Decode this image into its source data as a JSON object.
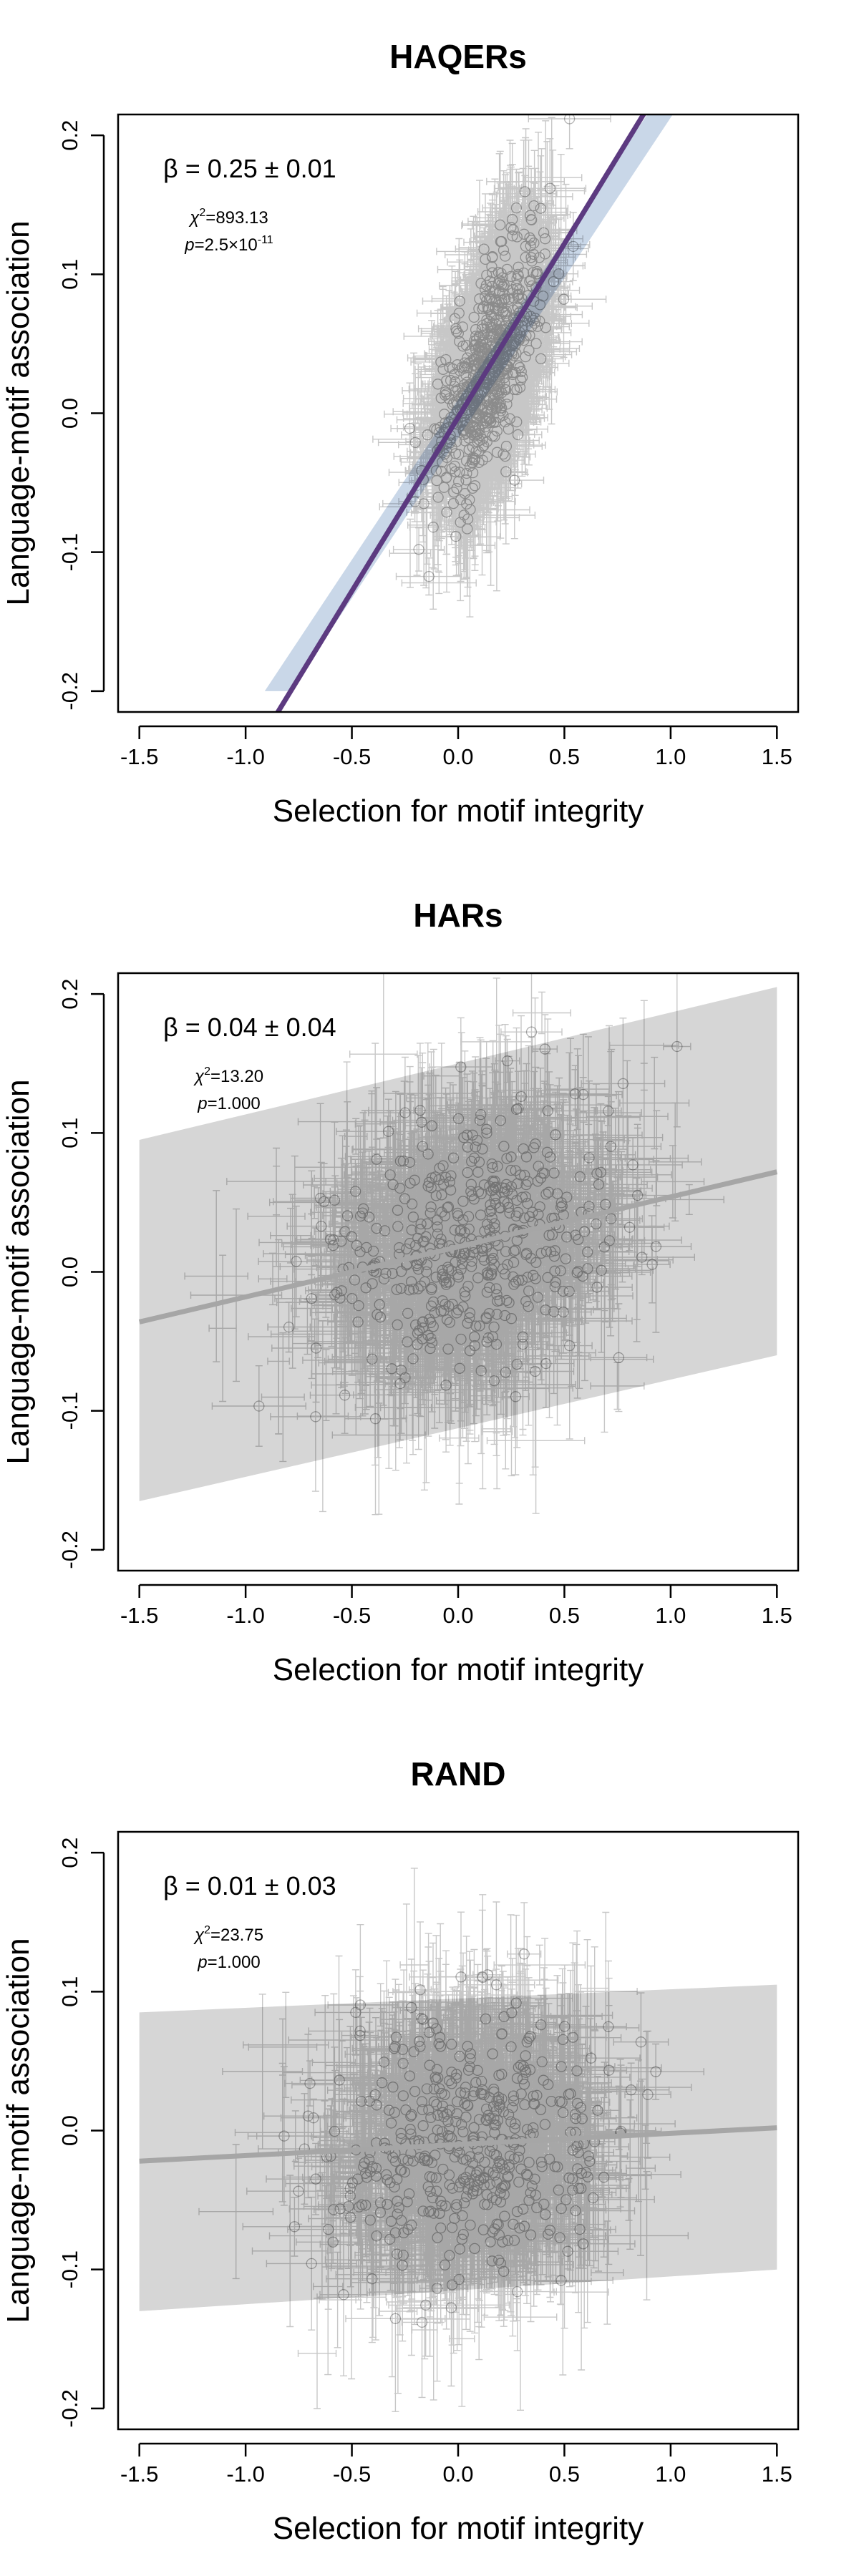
{
  "chart_data": [
    {
      "type": "scatter",
      "title": "HAQERs",
      "xlabel": "Selection for motif integrity",
      "ylabel": "Language-motif association",
      "xlim": [
        -1.6,
        1.6
      ],
      "ylim": [
        -0.215,
        0.215
      ],
      "xticks": [
        "-1.5",
        "-1.0",
        "-0.5",
        "0.0",
        "0.5",
        "1.0",
        "1.5"
      ],
      "yticks": [
        "-0.2",
        "-0.1",
        "0.0",
        "0.1",
        "0.2"
      ],
      "beta_label": "β = 0.25 ± 0.01",
      "chi2_label": "χ",
      "chi2_value": "=893.13",
      "p_label": "p",
      "p_value": "=2.5×10",
      "p_exponent": "-11",
      "fit": {
        "slope": 0.25,
        "intercept": -0.003
      },
      "band": {
        "left": [
          -0.85,
          -0.2
        ],
        "right": [
          0.95,
          0.215
        ]
      },
      "colors": {
        "fit_line": "#5c3a80",
        "band": "#c9d7e8",
        "points": "#000000"
      },
      "cloud": {
        "n": 2000,
        "x_mean": 0.15,
        "x_sd": 0.12,
        "y_sd_residual": 0.035,
        "x_err_range": [
          0.03,
          0.2
        ],
        "y_err_range": [
          0.005,
          0.06
        ]
      }
    },
    {
      "type": "scatter",
      "title": "HARs",
      "xlabel": "Selection for motif integrity",
      "ylabel": "Language-motif association",
      "xlim": [
        -1.6,
        1.6
      ],
      "ylim": [
        -0.215,
        0.215
      ],
      "xticks": [
        "-1.5",
        "-1.0",
        "-0.5",
        "0.0",
        "0.5",
        "1.0",
        "1.5"
      ],
      "yticks": [
        "-0.2",
        "-0.1",
        "0.0",
        "0.1",
        "0.2"
      ],
      "beta_label": "β = 0.04 ± 0.04",
      "chi2_label": "χ",
      "chi2_value": "=13.20",
      "p_label": "p",
      "p_value": "=1.000",
      "p_exponent": "",
      "fit": {
        "slope": 0.036,
        "intercept": 0.018
      },
      "band": {
        "x": [
          -1.5,
          1.5
        ],
        "upper": [
          0.095,
          0.205
        ],
        "lower": [
          -0.165,
          -0.06
        ]
      },
      "colors": {
        "fit_line": "#a6a6a6",
        "band": "#d6d6d6",
        "points": "#000000"
      },
      "cloud": {
        "n": 1500,
        "x_mean": 0.05,
        "x_sd": 0.32,
        "y_sd_residual": 0.045,
        "x_err_range": [
          0.05,
          0.25
        ],
        "y_err_range": [
          0.01,
          0.07
        ]
      }
    },
    {
      "type": "scatter",
      "title": "RAND",
      "xlabel": "Selection for motif integrity",
      "ylabel": "Language-motif association",
      "xlim": [
        -1.6,
        1.6
      ],
      "ylim": [
        -0.215,
        0.215
      ],
      "xticks": [
        "-1.5",
        "-1.0",
        "-0.5",
        "0.0",
        "0.5",
        "1.0",
        "1.5"
      ],
      "yticks": [
        "-0.2",
        "-0.1",
        "0.0",
        "0.1",
        "0.2"
      ],
      "beta_label": "β = 0.01 ± 0.03",
      "chi2_label": "χ",
      "chi2_value": "=23.75",
      "p_label": "p",
      "p_value": "=1.000",
      "p_exponent": "",
      "fit": {
        "slope": 0.008,
        "intercept": -0.01
      },
      "band": {
        "x": [
          -1.5,
          1.5
        ],
        "upper": [
          0.085,
          0.105
        ],
        "lower": [
          -0.13,
          -0.1
        ]
      },
      "colors": {
        "fit_line": "#a6a6a6",
        "band": "#d6d6d6",
        "points": "#000000"
      },
      "cloud": {
        "n": 1500,
        "x_mean": 0.05,
        "x_sd": 0.3,
        "y_sd_residual": 0.045,
        "x_err_range": [
          0.05,
          0.25
        ],
        "y_err_range": [
          0.01,
          0.07
        ]
      }
    }
  ]
}
